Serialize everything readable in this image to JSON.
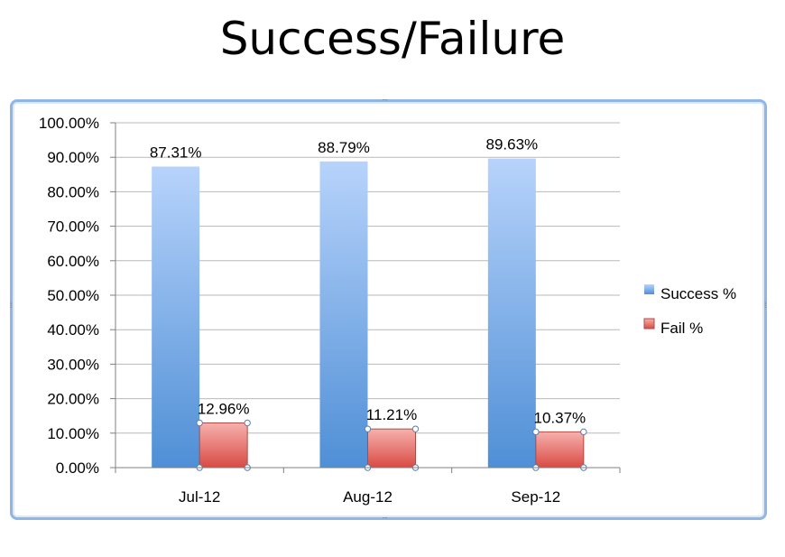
{
  "slide": {
    "title": "Success/Failure"
  },
  "colors": {
    "success_top": "#b7d3fb",
    "success_bottom": "#4f8fd6",
    "fail_top": "#f6b1ad",
    "fail_bottom": "#d94a44",
    "grid": "#b9b9b9",
    "frame": "#8fb6e4"
  },
  "chart_data": {
    "type": "bar",
    "title": "",
    "categories": [
      "Jul-12",
      "Aug-12",
      "Sep-12"
    ],
    "series": [
      {
        "name": "Success %",
        "values": [
          87.31,
          88.79,
          89.63
        ],
        "labels": [
          "87.31%",
          "88.79%",
          "89.63%"
        ]
      },
      {
        "name": "Fail %",
        "values": [
          12.96,
          11.21,
          10.37
        ],
        "labels": [
          "12.96%",
          "11.21%",
          "10.37%"
        ]
      }
    ],
    "ylim": [
      0,
      100
    ],
    "yticks": [
      "0.00%",
      "10.00%",
      "20.00%",
      "30.00%",
      "40.00%",
      "50.00%",
      "60.00%",
      "70.00%",
      "80.00%",
      "90.00%",
      "100.00%"
    ],
    "grid": true,
    "legend": "right"
  }
}
